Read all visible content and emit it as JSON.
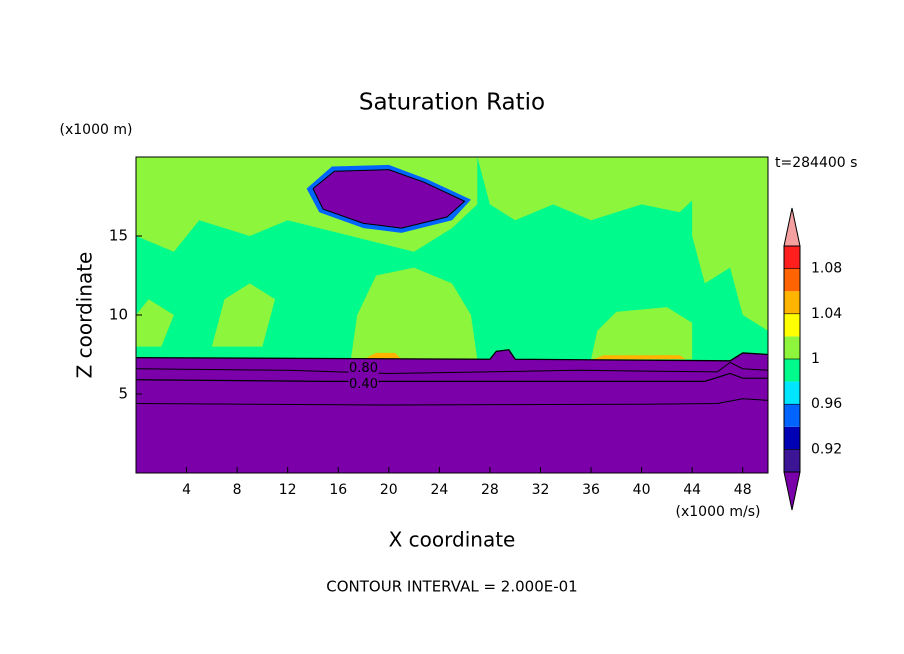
{
  "chart_data": {
    "type": "contour",
    "title": "Saturation Ratio",
    "xlabel": "X coordinate",
    "ylabel": "Z coordinate",
    "x_unit": "(x1000 m/s)",
    "y_unit": "(x1000 m)",
    "time_label": "t=284400 s",
    "footer": "CONTOUR INTERVAL = 2.000E-01",
    "xlim": [
      0,
      50
    ],
    "xticks": [
      4,
      8,
      12,
      16,
      20,
      24,
      28,
      32,
      36,
      40,
      44,
      48
    ],
    "ylim": [
      0,
      20
    ],
    "yticks": [
      5,
      10,
      15
    ],
    "contour_labels": [
      {
        "value": 0.8,
        "label": "0.80"
      },
      {
        "value": 0.4,
        "label": "0.40"
      }
    ],
    "colorbar": {
      "levels": [
        0.9,
        0.92,
        0.94,
        0.96,
        0.98,
        1,
        1.02,
        1.04,
        1.06,
        1.08,
        1.1
      ],
      "ticks": [
        0.92,
        0.96,
        1,
        1.04,
        1.08
      ],
      "colors": [
        "#7b00aa",
        "#3c1496",
        "#0000b4",
        "#0064ff",
        "#00e6ff",
        "#00fa8c",
        "#8cf53c",
        "#ffff00",
        "#ffb400",
        "#ff6400",
        "#ff1e1e",
        "#f5a0a0"
      ]
    }
  }
}
